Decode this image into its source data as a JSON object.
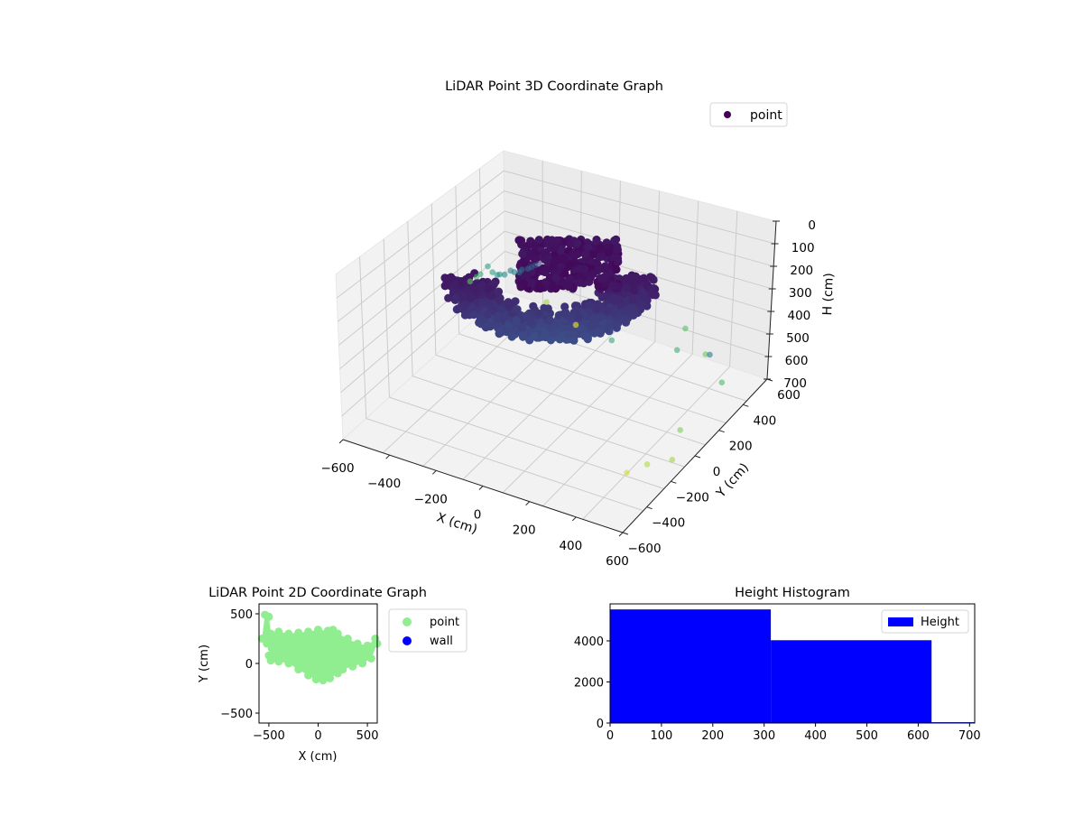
{
  "chart_data": [
    {
      "type": "scatter3d",
      "title": "LiDAR Point 3D Coordinate Graph",
      "xlabel": "X (cm)",
      "ylabel": "Y (cm)",
      "zlabel": "H (cm)",
      "xlim": [
        -600,
        600
      ],
      "ylim": [
        -600,
        600
      ],
      "zlim": [
        0,
        700
      ],
      "z_inverted": true,
      "x_ticks": [
        "−600",
        "−400",
        "−200",
        "0",
        "200",
        "400",
        "600"
      ],
      "y_ticks": [
        "−600",
        "−400",
        "−200",
        "0",
        "200",
        "400",
        "600"
      ],
      "z_ticks": [
        "0",
        "100",
        "200",
        "300",
        "400",
        "500",
        "600",
        "700"
      ],
      "legend": [
        "point"
      ],
      "legend_position": "upper right",
      "colormap": "viridis",
      "grid": true,
      "series": [
        {
          "name": "point",
          "bulk_cloud": "dense bowl-shaped cluster near the sensor, heights 0-350 cm",
          "sparse_points": [
            {
              "x": -560,
              "y": 360,
              "h": 520
            },
            {
              "x": -520,
              "y": 330,
              "h": 470
            },
            {
              "x": -490,
              "y": 300,
              "h": 430
            },
            {
              "x": -470,
              "y": 320,
              "h": 400
            },
            {
              "x": -430,
              "y": 280,
              "h": 390
            },
            {
              "x": -400,
              "y": 260,
              "h": 380
            },
            {
              "x": -380,
              "y": 240,
              "h": 360
            },
            {
              "x": -350,
              "y": 220,
              "h": 340
            },
            {
              "x": -330,
              "y": 230,
              "h": 320
            },
            {
              "x": -300,
              "y": 200,
              "h": 300
            },
            {
              "x": -270,
              "y": 180,
              "h": 280
            },
            {
              "x": -250,
              "y": 160,
              "h": 250
            },
            {
              "x": -220,
              "y": 150,
              "h": 230
            },
            {
              "x": -200,
              "y": 140,
              "h": 210
            },
            {
              "x": -180,
              "y": 130,
              "h": 190
            },
            {
              "x": -160,
              "y": 120,
              "h": 170
            },
            {
              "x": -300,
              "y": 500,
              "h": 600
            },
            {
              "x": -200,
              "y": 560,
              "h": 700
            },
            {
              "x": 300,
              "y": 480,
              "h": 500
            },
            {
              "x": 420,
              "y": 420,
              "h": 540
            },
            {
              "x": 150,
              "y": 150,
              "h": 420
            },
            {
              "x": 380,
              "y": 250,
              "h": 440
            },
            {
              "x": 600,
              "y": 200,
              "h": 480
            },
            {
              "x": 560,
              "y": -60,
              "h": 560
            },
            {
              "x": 600,
              "y": -200,
              "h": 600
            },
            {
              "x": 520,
              "y": -250,
              "h": 620
            },
            {
              "x": 460,
              "y": -300,
              "h": 650
            },
            {
              "x": 600,
              "y": 80,
              "h": 290
            }
          ]
        }
      ]
    },
    {
      "type": "scatter",
      "title": "LiDAR Point 2D Coordinate Graph",
      "xlabel": "X (cm)",
      "ylabel": "Y (cm)",
      "xlim": [
        -600,
        600
      ],
      "ylim": [
        -600,
        600
      ],
      "x_ticks": [
        "−500",
        "0",
        "500"
      ],
      "y_ticks": [
        "−500",
        "0",
        "500"
      ],
      "legend": [
        "point",
        "wall"
      ],
      "legend_position": "outside right",
      "series": [
        {
          "name": "point",
          "color": "#90ee90",
          "outline_points": [
            [
              -570,
              250
            ],
            [
              -540,
              490
            ],
            [
              -500,
              470
            ],
            [
              -480,
              300
            ],
            [
              -400,
              320
            ],
            [
              -300,
              300
            ],
            [
              -200,
              310
            ],
            [
              -100,
              320
            ],
            [
              0,
              340
            ],
            [
              100,
              330
            ],
            [
              150,
              340
            ],
            [
              200,
              300
            ],
            [
              300,
              250
            ],
            [
              400,
              200
            ],
            [
              500,
              180
            ],
            [
              580,
              250
            ],
            [
              600,
              200
            ],
            [
              540,
              50
            ],
            [
              450,
              0
            ],
            [
              350,
              -30
            ],
            [
              250,
              -60
            ],
            [
              200,
              -100
            ],
            [
              120,
              -150
            ],
            [
              50,
              -170
            ],
            [
              -20,
              -160
            ],
            [
              -100,
              -120
            ],
            [
              -200,
              -60
            ],
            [
              -300,
              0
            ],
            [
              -400,
              20
            ],
            [
              -480,
              30
            ],
            [
              -500,
              80
            ],
            [
              -470,
              150
            ],
            [
              -520,
              200
            ]
          ]
        },
        {
          "name": "wall",
          "color": "#0000ff",
          "outline_points": []
        }
      ]
    },
    {
      "type": "bar",
      "title": "Height Histogram",
      "xlabel": "",
      "ylabel": "",
      "xlim": [
        0,
        710
      ],
      "ylim": [
        0,
        5800
      ],
      "x_ticks": [
        "0",
        "100",
        "200",
        "300",
        "400",
        "500",
        "600",
        "700"
      ],
      "y_ticks": [
        "0",
        "2000",
        "4000"
      ],
      "legend": [
        "Height"
      ],
      "legend_position": "upper right",
      "color": "#0000ff",
      "bins": [
        {
          "start": 0,
          "end": 313,
          "count": 5530
        },
        {
          "start": 313,
          "end": 626,
          "count": 4030
        },
        {
          "start": 626,
          "end": 710,
          "count": 40
        }
      ]
    }
  ]
}
